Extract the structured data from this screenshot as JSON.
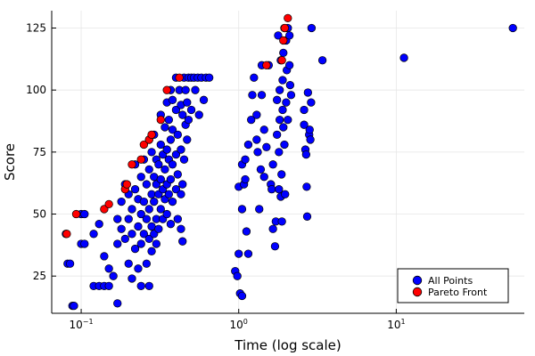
{
  "chart_data": {
    "type": "scatter",
    "xlabel": "Time (log scale)",
    "ylabel": "Score",
    "xscale": "log",
    "xlim": [
      0.065,
      65
    ],
    "ylim": [
      10,
      132
    ],
    "grid": true,
    "legend_position": "bottom-right",
    "x_ticks": [
      {
        "value": 0.1,
        "base": "10",
        "exp": "−1"
      },
      {
        "value": 1,
        "base": "10",
        "exp": "0"
      },
      {
        "value": 10,
        "base": "10",
        "exp": "1"
      }
    ],
    "y_ticks": [
      25,
      50,
      75,
      100,
      125
    ],
    "series": [
      {
        "name": "All Points",
        "color": "#0000ff",
        "points": [
          [
            0.08,
            42
          ],
          [
            0.082,
            30
          ],
          [
            0.085,
            30
          ],
          [
            0.088,
            13
          ],
          [
            0.09,
            13
          ],
          [
            0.1,
            50
          ],
          [
            0.105,
            50
          ],
          [
            0.1,
            38
          ],
          [
            0.105,
            38
          ],
          [
            0.12,
            21
          ],
          [
            0.13,
            21
          ],
          [
            0.14,
            21
          ],
          [
            0.15,
            21
          ],
          [
            0.12,
            42
          ],
          [
            0.13,
            46
          ],
          [
            0.14,
            33
          ],
          [
            0.15,
            28
          ],
          [
            0.16,
            25
          ],
          [
            0.17,
            14
          ],
          [
            0.17,
            38
          ],
          [
            0.17,
            48
          ],
          [
            0.18,
            44
          ],
          [
            0.18,
            55
          ],
          [
            0.19,
            40
          ],
          [
            0.19,
            62
          ],
          [
            0.2,
            30
          ],
          [
            0.2,
            48
          ],
          [
            0.2,
            58
          ],
          [
            0.21,
            24
          ],
          [
            0.21,
            42
          ],
          [
            0.21,
            52
          ],
          [
            0.22,
            36
          ],
          [
            0.22,
            60
          ],
          [
            0.22,
            70
          ],
          [
            0.23,
            28
          ],
          [
            0.23,
            45
          ],
          [
            0.23,
            56
          ],
          [
            0.24,
            21
          ],
          [
            0.24,
            38
          ],
          [
            0.24,
            50
          ],
          [
            0.24,
            65
          ],
          [
            0.25,
            42
          ],
          [
            0.25,
            55
          ],
          [
            0.25,
            72
          ],
          [
            0.26,
            30
          ],
          [
            0.26,
            48
          ],
          [
            0.26,
            62
          ],
          [
            0.27,
            21
          ],
          [
            0.27,
            40
          ],
          [
            0.27,
            52
          ],
          [
            0.27,
            68
          ],
          [
            0.27,
            80
          ],
          [
            0.28,
            35
          ],
          [
            0.28,
            45
          ],
          [
            0.28,
            58
          ],
          [
            0.28,
            75
          ],
          [
            0.29,
            42
          ],
          [
            0.29,
            55
          ],
          [
            0.29,
            65
          ],
          [
            0.29,
            82
          ],
          [
            0.3,
            38
          ],
          [
            0.3,
            48
          ],
          [
            0.3,
            62
          ],
          [
            0.3,
            72
          ],
          [
            0.31,
            44
          ],
          [
            0.31,
            58
          ],
          [
            0.31,
            70
          ],
          [
            0.32,
            52
          ],
          [
            0.32,
            64
          ],
          [
            0.32,
            78
          ],
          [
            0.32,
            90
          ],
          [
            0.33,
            48
          ],
          [
            0.33,
            60
          ],
          [
            0.33,
            74
          ],
          [
            0.34,
            56
          ],
          [
            0.34,
            68
          ],
          [
            0.34,
            85
          ],
          [
            0.35,
            50
          ],
          [
            0.35,
            62
          ],
          [
            0.35,
            76
          ],
          [
            0.35,
            95
          ],
          [
            0.36,
            58
          ],
          [
            0.36,
            72
          ],
          [
            0.36,
            88
          ],
          [
            0.37,
            46
          ],
          [
            0.37,
            64
          ],
          [
            0.37,
            80
          ],
          [
            0.37,
            100
          ],
          [
            0.38,
            55
          ],
          [
            0.38,
            70
          ],
          [
            0.38,
            84
          ],
          [
            0.38,
            96
          ],
          [
            0.4,
            60
          ],
          [
            0.4,
            74
          ],
          [
            0.4,
            92
          ],
          [
            0.4,
            105
          ],
          [
            0.41,
            48
          ],
          [
            0.41,
            66
          ],
          [
            0.41,
            82
          ],
          [
            0.42,
            100
          ],
          [
            0.43,
            44
          ],
          [
            0.43,
            58
          ],
          [
            0.43,
            76
          ],
          [
            0.43,
            94
          ],
          [
            0.44,
            39
          ],
          [
            0.44,
            62
          ],
          [
            0.44,
            90
          ],
          [
            0.45,
            105
          ],
          [
            0.45,
            72
          ],
          [
            0.46,
            86
          ],
          [
            0.46,
            100
          ],
          [
            0.47,
            80
          ],
          [
            0.47,
            95
          ],
          [
            0.48,
            105
          ],
          [
            0.48,
            88
          ],
          [
            0.5,
            105
          ],
          [
            0.5,
            92
          ],
          [
            0.52,
            105
          ],
          [
            0.53,
            100
          ],
          [
            0.55,
            105
          ],
          [
            0.56,
            90
          ],
          [
            0.58,
            105
          ],
          [
            0.6,
            96
          ],
          [
            0.62,
            105
          ],
          [
            0.65,
            105
          ],
          [
            0.95,
            27
          ],
          [
            0.98,
            25
          ],
          [
            1.0,
            34
          ],
          [
            1.0,
            61
          ],
          [
            1.02,
            18
          ],
          [
            1.05,
            17
          ],
          [
            1.05,
            52
          ],
          [
            1.05,
            70
          ],
          [
            1.08,
            62
          ],
          [
            1.1,
            64
          ],
          [
            1.1,
            72
          ],
          [
            1.12,
            43
          ],
          [
            1.15,
            78
          ],
          [
            1.15,
            34
          ],
          [
            1.2,
            88
          ],
          [
            1.22,
            98
          ],
          [
            1.25,
            105
          ],
          [
            1.3,
            90
          ],
          [
            1.3,
            80
          ],
          [
            1.32,
            75
          ],
          [
            1.35,
            52
          ],
          [
            1.38,
            68
          ],
          [
            1.4,
            98
          ],
          [
            1.4,
            110
          ],
          [
            1.45,
            84
          ],
          [
            1.45,
            65
          ],
          [
            1.5,
            77
          ],
          [
            1.55,
            110
          ],
          [
            1.6,
            62
          ],
          [
            1.62,
            60
          ],
          [
            1.65,
            70
          ],
          [
            1.65,
            44
          ],
          [
            1.7,
            37
          ],
          [
            1.72,
            47
          ],
          [
            1.75,
            82
          ],
          [
            1.75,
            96
          ],
          [
            1.78,
            122
          ],
          [
            1.8,
            60
          ],
          [
            1.8,
            75
          ],
          [
            1.82,
            88
          ],
          [
            1.82,
            100
          ],
          [
            1.85,
            112
          ],
          [
            1.85,
            57
          ],
          [
            1.87,
            66
          ],
          [
            1.88,
            47
          ],
          [
            1.9,
            92
          ],
          [
            1.9,
            104
          ],
          [
            1.92,
            85
          ],
          [
            1.92,
            115
          ],
          [
            1.95,
            125
          ],
          [
            1.95,
            78
          ],
          [
            1.97,
            58
          ],
          [
            2.0,
            95
          ],
          [
            2.0,
            120
          ],
          [
            2.02,
            108
          ],
          [
            2.05,
            125
          ],
          [
            2.05,
            88
          ],
          [
            2.1,
            110
          ],
          [
            2.1,
            122
          ],
          [
            2.12,
            102
          ],
          [
            2.15,
            98
          ],
          [
            2.6,
            86
          ],
          [
            2.6,
            92
          ],
          [
            2.65,
            76
          ],
          [
            2.68,
            74
          ],
          [
            2.7,
            61
          ],
          [
            2.72,
            49
          ],
          [
            2.75,
            99
          ],
          [
            2.8,
            82
          ],
          [
            2.82,
            84
          ],
          [
            2.85,
            80
          ],
          [
            2.88,
            95
          ],
          [
            2.9,
            125
          ],
          [
            3.4,
            112
          ],
          [
            11.2,
            113
          ],
          [
            55,
            125
          ]
        ]
      },
      {
        "name": "Pareto Front",
        "color": "#ff0000",
        "points": [
          [
            0.081,
            42
          ],
          [
            0.093,
            50
          ],
          [
            0.14,
            52
          ],
          [
            0.15,
            54
          ],
          [
            0.19,
            60
          ],
          [
            0.195,
            62
          ],
          [
            0.21,
            70
          ],
          [
            0.24,
            72
          ],
          [
            0.25,
            78
          ],
          [
            0.27,
            80
          ],
          [
            0.28,
            82
          ],
          [
            0.32,
            88
          ],
          [
            0.35,
            100
          ],
          [
            0.42,
            105
          ],
          [
            1.5,
            110
          ],
          [
            1.88,
            112
          ],
          [
            1.92,
            120
          ],
          [
            1.96,
            125
          ],
          [
            2.05,
            129
          ]
        ]
      }
    ]
  }
}
